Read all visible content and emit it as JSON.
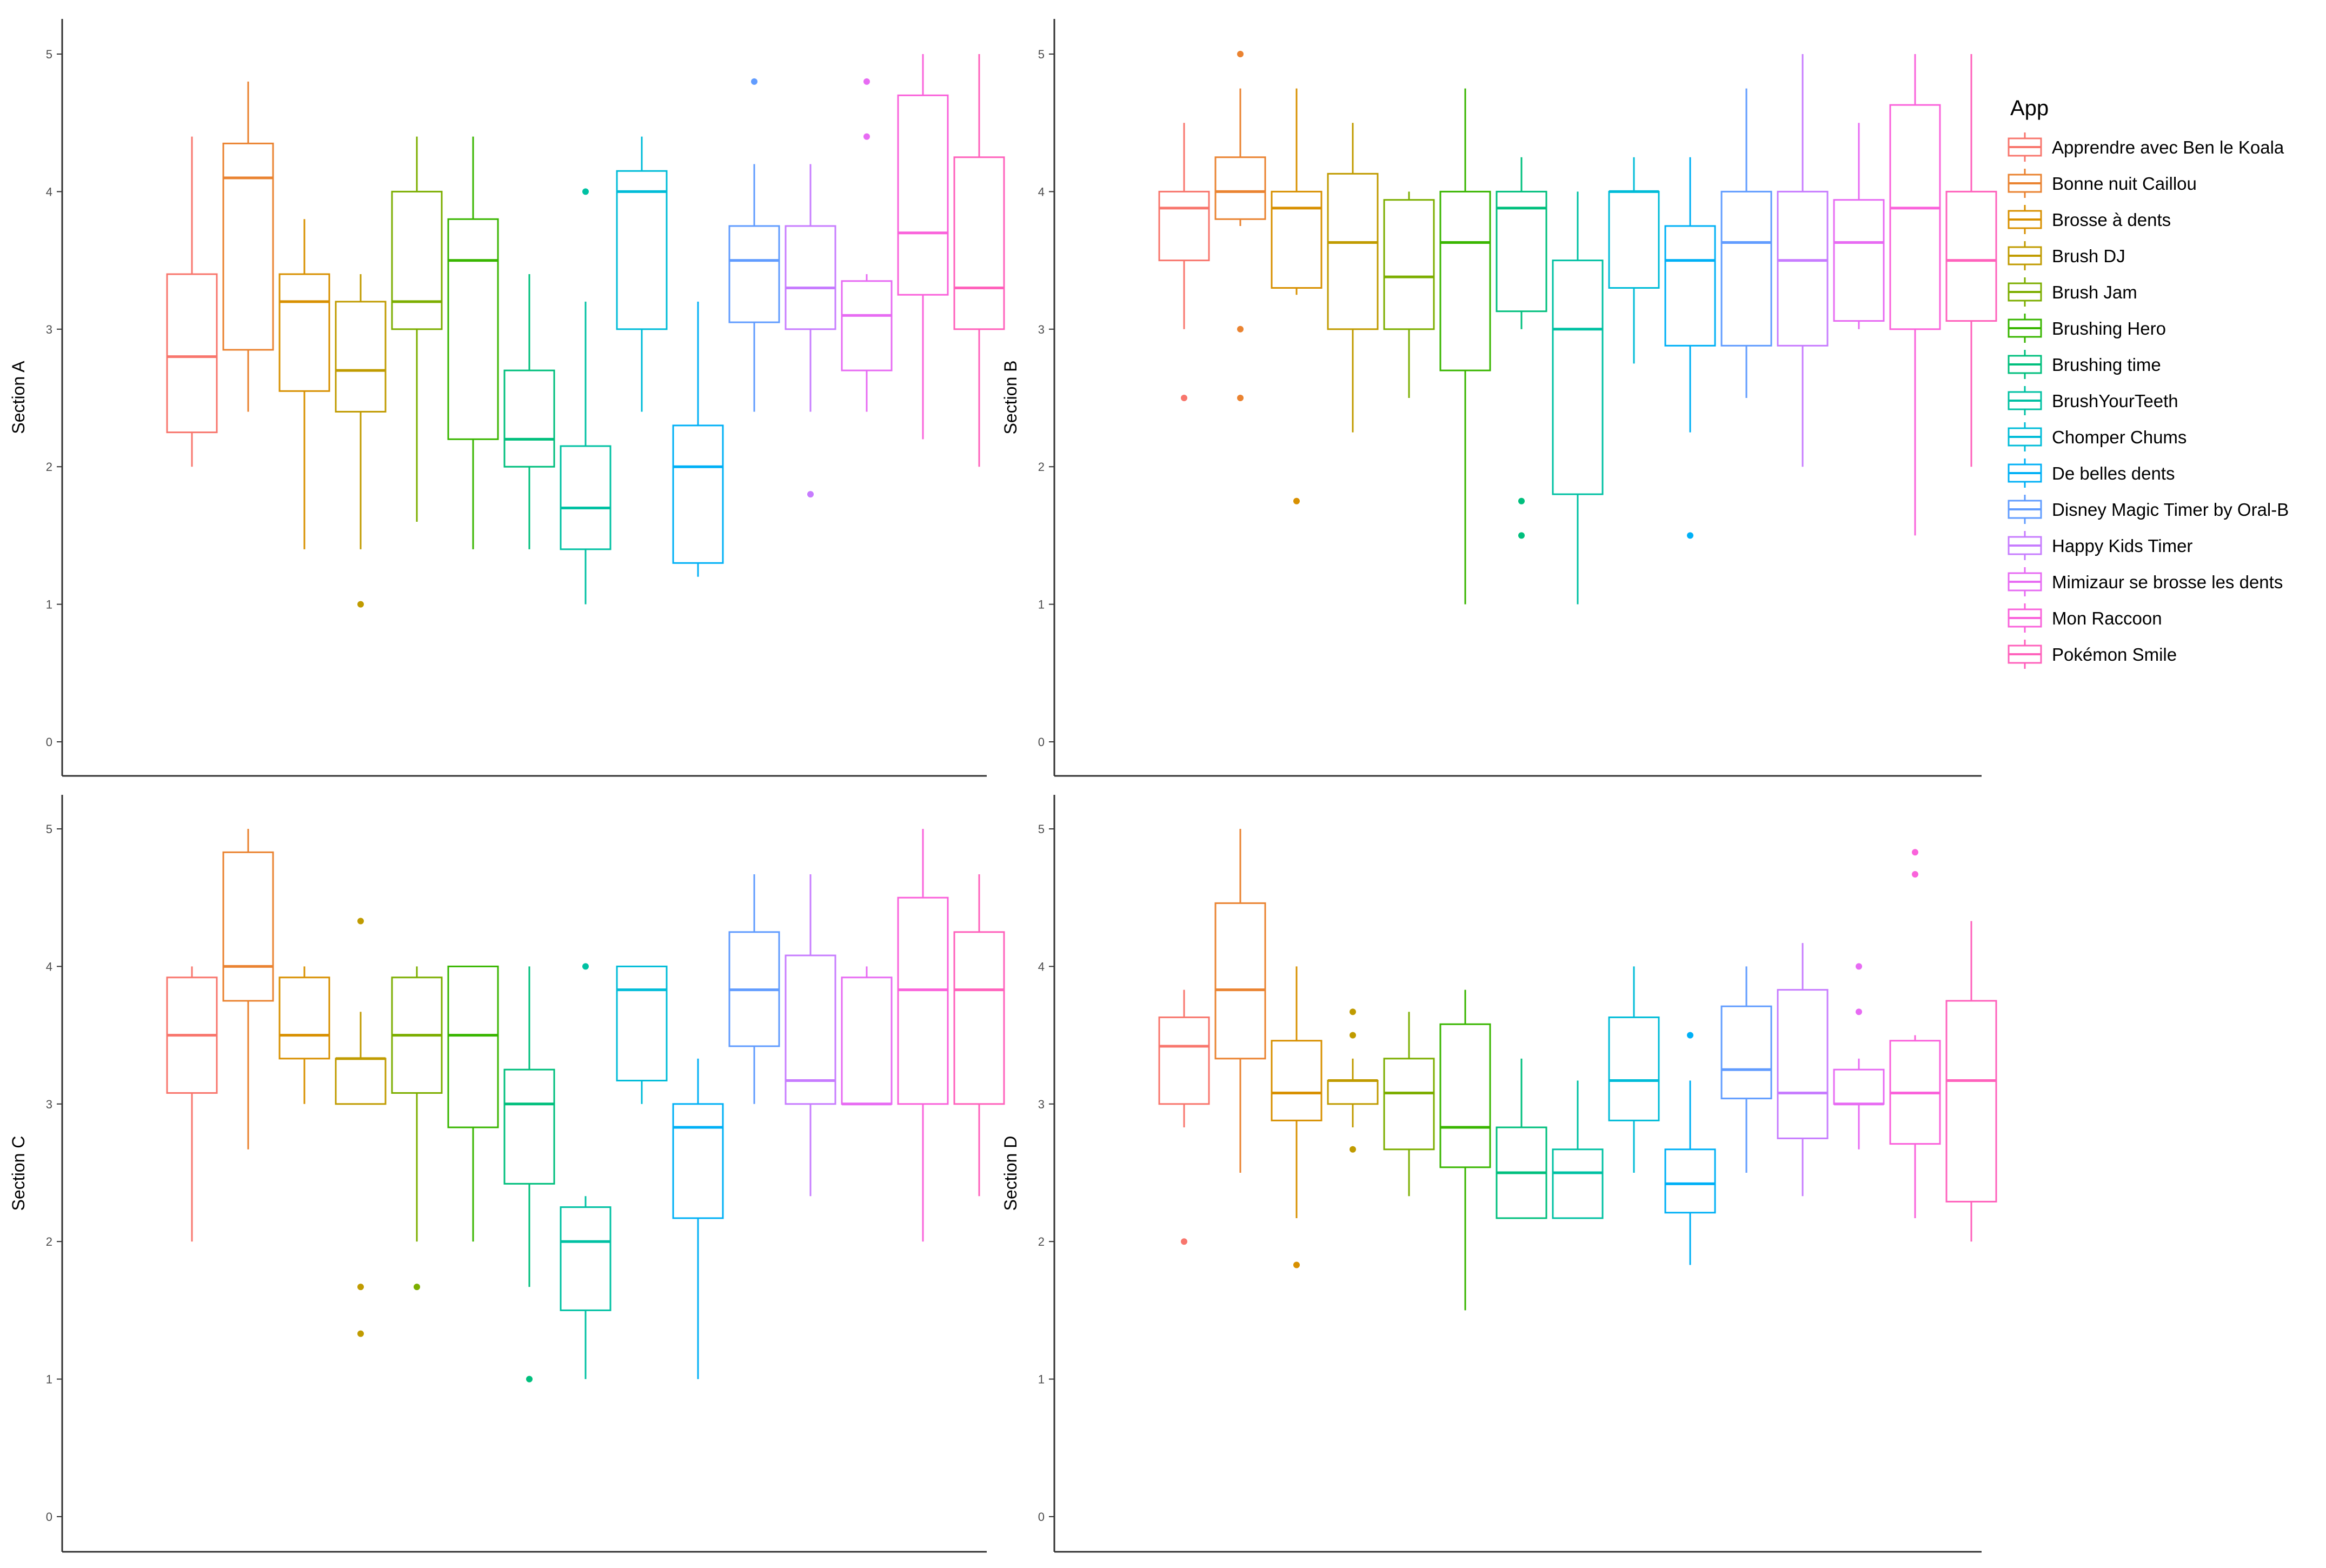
{
  "chart_data": {
    "type": "box",
    "legend": {
      "title": "App",
      "placement": "right",
      "entries": [
        {
          "name": "Apprendre avec Ben le Koala",
          "color": "#F8766D"
        },
        {
          "name": "Bonne nuit Caillou",
          "color": "#EA8331"
        },
        {
          "name": "Brosse à dents",
          "color": "#D89000"
        },
        {
          "name": "Brush DJ",
          "color": "#C09B00"
        },
        {
          "name": "Brush Jam",
          "color": "#7CAE00"
        },
        {
          "name": "Brushing Hero",
          "color": "#39B600"
        },
        {
          "name": "Brushing time",
          "color": "#00BF7D"
        },
        {
          "name": "BrushYourTeeth",
          "color": "#00C1A3"
        },
        {
          "name": "Chomper Chums",
          "color": "#00BCD8"
        },
        {
          "name": "De belles dents",
          "color": "#00B0F6"
        },
        {
          "name": "Disney Magic Timer by Oral-B",
          "color": "#619CFF"
        },
        {
          "name": "Happy Kids Timer",
          "color": "#C77CFF"
        },
        {
          "name": "Mimizaur se brosse les dents",
          "color": "#E76BF3"
        },
        {
          "name": "Mon Raccoon",
          "color": "#FA62DB"
        },
        {
          "name": "Pokémon Smile",
          "color": "#FF62BC"
        }
      ]
    },
    "ylim": [
      0,
      5
    ],
    "y_ticks": [
      "0",
      "1",
      "2",
      "3",
      "4",
      "5"
    ],
    "grid": false,
    "panels": [
      {
        "ylabel": "Section A",
        "boxes": [
          {
            "app": "Apprendre avec Ben le Koala",
            "min": 2.0,
            "q1": 2.25,
            "median": 2.8,
            "q3": 3.4,
            "max": 4.4,
            "outliers": []
          },
          {
            "app": "Bonne nuit Caillou",
            "min": 2.4,
            "q1": 2.85,
            "median": 4.1,
            "q3": 4.35,
            "max": 4.8,
            "outliers": []
          },
          {
            "app": "Brosse à dents",
            "min": 1.4,
            "q1": 2.55,
            "median": 3.2,
            "q3": 3.4,
            "max": 3.8,
            "outliers": []
          },
          {
            "app": "Brush DJ",
            "min": 1.4,
            "q1": 2.4,
            "median": 2.7,
            "q3": 3.2,
            "max": 3.4,
            "outliers": [
              1.0
            ]
          },
          {
            "app": "Brush Jam",
            "min": 1.6,
            "q1": 3.0,
            "median": 3.2,
            "q3": 4.0,
            "max": 4.4,
            "outliers": []
          },
          {
            "app": "Brushing Hero",
            "min": 1.4,
            "q1": 2.2,
            "median": 3.5,
            "q3": 3.8,
            "max": 4.4,
            "outliers": []
          },
          {
            "app": "Brushing time",
            "min": 1.4,
            "q1": 2.0,
            "median": 2.2,
            "q3": 2.7,
            "max": 3.4,
            "outliers": []
          },
          {
            "app": "BrushYourTeeth",
            "min": 1.0,
            "q1": 1.4,
            "median": 1.7,
            "q3": 2.15,
            "max": 3.2,
            "outliers": [
              4.0
            ]
          },
          {
            "app": "Chomper Chums",
            "min": 2.4,
            "q1": 3.0,
            "median": 4.0,
            "q3": 4.15,
            "max": 4.4,
            "outliers": []
          },
          {
            "app": "De belles dents",
            "min": 1.2,
            "q1": 1.3,
            "median": 2.0,
            "q3": 2.3,
            "max": 3.2,
            "outliers": []
          },
          {
            "app": "Disney Magic Timer by Oral-B",
            "min": 2.4,
            "q1": 3.05,
            "median": 3.5,
            "q3": 3.75,
            "max": 4.2,
            "outliers": [
              4.8
            ]
          },
          {
            "app": "Happy Kids Timer",
            "min": 2.4,
            "q1": 3.0,
            "median": 3.3,
            "q3": 3.75,
            "max": 4.2,
            "outliers": [
              1.8
            ]
          },
          {
            "app": "Mimizaur se brosse les dents",
            "min": 2.4,
            "q1": 2.7,
            "median": 3.1,
            "q3": 3.35,
            "max": 3.4,
            "outliers": [
              4.4,
              4.8
            ]
          },
          {
            "app": "Mon Raccoon",
            "min": 2.2,
            "q1": 3.25,
            "median": 3.7,
            "q3": 4.7,
            "max": 5.0,
            "outliers": []
          },
          {
            "app": "Pokémon Smile",
            "min": 2.0,
            "q1": 3.0,
            "median": 3.3,
            "q3": 4.25,
            "max": 5.0,
            "outliers": []
          }
        ]
      },
      {
        "ylabel": "Section B",
        "boxes": [
          {
            "app": "Apprendre avec Ben le Koala",
            "min": 3.0,
            "q1": 3.5,
            "median": 3.88,
            "q3": 4.0,
            "max": 4.5,
            "outliers": [
              2.5
            ]
          },
          {
            "app": "Bonne nuit Caillou",
            "min": 3.75,
            "q1": 3.8,
            "median": 4.0,
            "q3": 4.25,
            "max": 4.75,
            "outliers": [
              3.0,
              2.5,
              5.0
            ]
          },
          {
            "app": "Brosse à dents",
            "min": 3.25,
            "q1": 3.3,
            "median": 3.88,
            "q3": 4.0,
            "max": 4.75,
            "outliers": [
              1.75
            ]
          },
          {
            "app": "Brush DJ",
            "min": 2.25,
            "q1": 3.0,
            "median": 3.63,
            "q3": 4.13,
            "max": 4.5,
            "outliers": []
          },
          {
            "app": "Brush Jam",
            "min": 2.5,
            "q1": 3.0,
            "median": 3.38,
            "q3": 3.94,
            "max": 4.0,
            "outliers": []
          },
          {
            "app": "Brushing Hero",
            "min": 1.0,
            "q1": 2.7,
            "median": 3.63,
            "q3": 4.0,
            "max": 4.75,
            "outliers": []
          },
          {
            "app": "Brushing time",
            "min": 3.0,
            "q1": 3.13,
            "median": 3.88,
            "q3": 4.0,
            "max": 4.25,
            "outliers": [
              1.75,
              1.5
            ]
          },
          {
            "app": "BrushYourTeeth",
            "min": 1.0,
            "q1": 1.8,
            "median": 3.0,
            "q3": 3.5,
            "max": 4.0,
            "outliers": []
          },
          {
            "app": "Chomper Chums",
            "min": 2.75,
            "q1": 3.3,
            "median": 4.0,
            "q3": 4.0,
            "max": 4.25,
            "outliers": []
          },
          {
            "app": "De belles dents",
            "min": 2.25,
            "q1": 2.88,
            "median": 3.5,
            "q3": 3.75,
            "max": 4.25,
            "outliers": [
              1.5
            ]
          },
          {
            "app": "Disney Magic Timer by Oral-B",
            "min": 2.5,
            "q1": 2.88,
            "median": 3.63,
            "q3": 4.0,
            "max": 4.75,
            "outliers": []
          },
          {
            "app": "Happy Kids Timer",
            "min": 2.0,
            "q1": 2.88,
            "median": 3.5,
            "q3": 4.0,
            "max": 5.0,
            "outliers": []
          },
          {
            "app": "Mimizaur se brosse les dents",
            "min": 3.0,
            "q1": 3.06,
            "median": 3.63,
            "q3": 3.94,
            "max": 4.5,
            "outliers": []
          },
          {
            "app": "Mon Raccoon",
            "min": 1.5,
            "q1": 3.0,
            "median": 3.88,
            "q3": 4.63,
            "max": 5.0,
            "outliers": []
          },
          {
            "app": "Pokémon Smile",
            "min": 2.0,
            "q1": 3.06,
            "median": 3.5,
            "q3": 4.0,
            "max": 5.0,
            "outliers": []
          }
        ]
      },
      {
        "ylabel": "Section C",
        "boxes": [
          {
            "app": "Apprendre avec Ben le Koala",
            "min": 2.0,
            "q1": 3.08,
            "median": 3.5,
            "q3": 3.92,
            "max": 4.0,
            "outliers": []
          },
          {
            "app": "Bonne nuit Caillou",
            "min": 2.67,
            "q1": 3.75,
            "median": 4.0,
            "q3": 4.83,
            "max": 5.0,
            "outliers": []
          },
          {
            "app": "Brosse à dents",
            "min": 3.0,
            "q1": 3.33,
            "median": 3.5,
            "q3": 3.92,
            "max": 4.0,
            "outliers": []
          },
          {
            "app": "Brush DJ",
            "min": 3.0,
            "q1": 3.0,
            "median": 3.33,
            "q3": 3.33,
            "max": 3.67,
            "outliers": [
              4.33,
              1.67,
              1.33
            ]
          },
          {
            "app": "Brush Jam",
            "min": 2.0,
            "q1": 3.08,
            "median": 3.5,
            "q3": 3.92,
            "max": 4.0,
            "outliers": [
              1.67
            ]
          },
          {
            "app": "Brushing Hero",
            "min": 2.0,
            "q1": 2.83,
            "median": 3.5,
            "q3": 4.0,
            "max": 4.0,
            "outliers": []
          },
          {
            "app": "Brushing time",
            "min": 1.67,
            "q1": 2.42,
            "median": 3.0,
            "q3": 3.25,
            "max": 4.0,
            "outliers": [
              1.0
            ]
          },
          {
            "app": "BrushYourTeeth",
            "min": 1.0,
            "q1": 1.5,
            "median": 2.0,
            "q3": 2.25,
            "max": 2.33,
            "outliers": [
              4.0
            ]
          },
          {
            "app": "Chomper Chums",
            "min": 3.0,
            "q1": 3.17,
            "median": 3.83,
            "q3": 4.0,
            "max": 4.0,
            "outliers": []
          },
          {
            "app": "De belles dents",
            "min": 1.0,
            "q1": 2.17,
            "median": 2.83,
            "q3": 3.0,
            "max": 3.33,
            "outliers": []
          },
          {
            "app": "Disney Magic Timer by Oral-B",
            "min": 3.0,
            "q1": 3.42,
            "median": 3.83,
            "q3": 4.25,
            "max": 4.67,
            "outliers": []
          },
          {
            "app": "Happy Kids Timer",
            "min": 2.33,
            "q1": 3.0,
            "median": 3.17,
            "q3": 4.08,
            "max": 4.67,
            "outliers": []
          },
          {
            "app": "Mimizaur se brosse les dents",
            "min": 3.0,
            "q1": 3.0,
            "median": 3.0,
            "q3": 3.92,
            "max": 4.0,
            "outliers": []
          },
          {
            "app": "Mon Raccoon",
            "min": 2.0,
            "q1": 3.0,
            "median": 3.83,
            "q3": 4.5,
            "max": 5.0,
            "outliers": []
          },
          {
            "app": "Pokémon Smile",
            "min": 2.33,
            "q1": 3.0,
            "median": 3.83,
            "q3": 4.25,
            "max": 4.67,
            "outliers": []
          }
        ]
      },
      {
        "ylabel": "Section D",
        "boxes": [
          {
            "app": "Apprendre avec Ben le Koala",
            "min": 2.83,
            "q1": 3.0,
            "median": 3.42,
            "q3": 3.63,
            "max": 3.83,
            "outliers": [
              2.0
            ]
          },
          {
            "app": "Bonne nuit Caillou",
            "min": 2.5,
            "q1": 3.33,
            "median": 3.83,
            "q3": 4.46,
            "max": 5.0,
            "outliers": []
          },
          {
            "app": "Brosse à dents",
            "min": 2.17,
            "q1": 2.88,
            "median": 3.08,
            "q3": 3.46,
            "max": 4.0,
            "outliers": [
              1.83
            ]
          },
          {
            "app": "Brush DJ",
            "min": 2.83,
            "q1": 3.0,
            "median": 3.17,
            "q3": 3.17,
            "max": 3.33,
            "outliers": [
              3.67,
              3.5,
              2.67
            ]
          },
          {
            "app": "Brush Jam",
            "min": 2.33,
            "q1": 2.67,
            "median": 3.08,
            "q3": 3.33,
            "max": 3.67,
            "outliers": []
          },
          {
            "app": "Brushing Hero",
            "min": 1.5,
            "q1": 2.54,
            "median": 2.83,
            "q3": 3.58,
            "max": 3.83,
            "outliers": []
          },
          {
            "app": "Brushing time",
            "min": 2.17,
            "q1": 2.17,
            "median": 2.5,
            "q3": 2.83,
            "max": 3.33,
            "outliers": []
          },
          {
            "app": "BrushYourTeeth",
            "min": 2.17,
            "q1": 2.17,
            "median": 2.5,
            "q3": 2.67,
            "max": 3.17,
            "outliers": []
          },
          {
            "app": "Chomper Chums",
            "min": 2.5,
            "q1": 2.88,
            "median": 3.17,
            "q3": 3.63,
            "max": 4.0,
            "outliers": []
          },
          {
            "app": "De belles dents",
            "min": 1.83,
            "q1": 2.21,
            "median": 2.42,
            "q3": 2.67,
            "max": 3.17,
            "outliers": [
              3.5
            ]
          },
          {
            "app": "Disney Magic Timer by Oral-B",
            "min": 2.5,
            "q1": 3.04,
            "median": 3.25,
            "q3": 3.71,
            "max": 4.0,
            "outliers": []
          },
          {
            "app": "Happy Kids Timer",
            "min": 2.33,
            "q1": 2.75,
            "median": 3.08,
            "q3": 3.83,
            "max": 4.17,
            "outliers": []
          },
          {
            "app": "Mimizaur se brosse les dents",
            "min": 2.67,
            "q1": 3.0,
            "median": 3.0,
            "q3": 3.25,
            "max": 3.33,
            "outliers": [
              4.0,
              3.67
            ]
          },
          {
            "app": "Mon Raccoon",
            "min": 2.17,
            "q1": 2.71,
            "median": 3.08,
            "q3": 3.46,
            "max": 3.5,
            "outliers": [
              4.83,
              4.67
            ]
          },
          {
            "app": "Pokémon Smile",
            "min": 2.0,
            "q1": 2.29,
            "median": 3.17,
            "q3": 3.75,
            "max": 4.33,
            "outliers": []
          }
        ]
      }
    ]
  }
}
